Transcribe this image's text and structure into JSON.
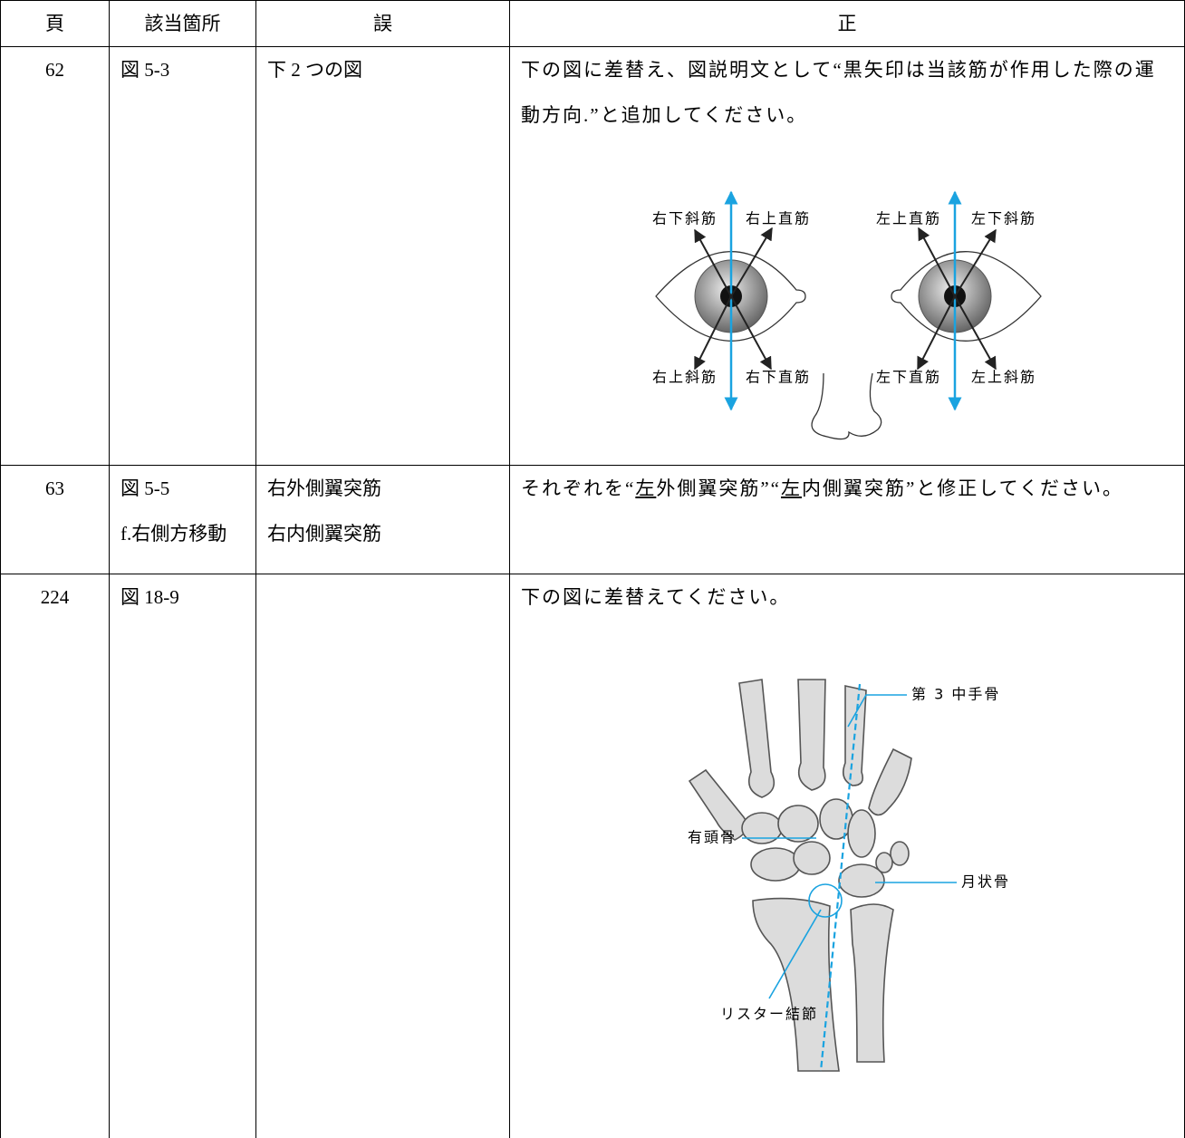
{
  "table": {
    "header": [
      "頁",
      "該当箇所",
      "誤",
      "正"
    ],
    "rows": [
      {
        "page": "62",
        "location": [
          "図 5-3"
        ],
        "wrong": [
          "下 2 つの図"
        ],
        "correct": [
          "下の図に差替え、図説明文として“黒矢印は当該筋が作用した際の運動方向.”と追加してください。"
        ],
        "figure_labels": [
          "右下斜筋",
          "右上直筋",
          "左上直筋",
          "左下斜筋",
          "右上斜筋",
          "右下直筋",
          "左下直筋",
          "左上斜筋"
        ]
      },
      {
        "page": "63",
        "location": [
          "図 5-5",
          "f.右側方移動"
        ],
        "wrong": [
          "右外側翼突筋",
          "右内側翼突筋"
        ],
        "correct": [
          "それぞれを“",
          "左",
          "外側翼突筋”“",
          "左",
          "内側翼突筋”と修正してください。"
        ]
      },
      {
        "page": "224",
        "location": [
          "図 18-9"
        ],
        "correct": [
          "下の図に差替えてください。"
        ],
        "figure_labels": [
          "第 3 中手骨",
          "有頭骨",
          "月状骨",
          "リスター結節"
        ]
      }
    ]
  }
}
